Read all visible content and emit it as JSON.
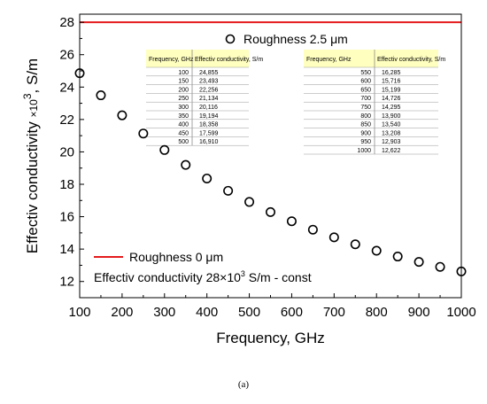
{
  "chart_data": {
    "type": "scatter",
    "xlabel": "Frequency, GHz",
    "ylabel_main": "Effectiv conductivity ",
    "ylabel_mult": "×10",
    "ylabel_exp": "3",
    "ylabel_unit": ", S/m",
    "xlim": [
      100,
      1000
    ],
    "ylim": [
      11,
      28.5
    ],
    "x_ticks": [
      100,
      200,
      300,
      400,
      500,
      600,
      700,
      800,
      900,
      1000
    ],
    "y_ticks": [
      12,
      14,
      16,
      18,
      20,
      22,
      24,
      26,
      28
    ],
    "series": [
      {
        "name": "Roughness 2.5 μm",
        "marker": "open-circle",
        "x": [
          100,
          150,
          200,
          250,
          300,
          350,
          400,
          450,
          500,
          550,
          600,
          650,
          700,
          750,
          800,
          850,
          900,
          950,
          1000
        ],
        "y": [
          24.855,
          23.493,
          22.256,
          21.134,
          20.116,
          19.194,
          18.358,
          17.599,
          16.91,
          16.285,
          15.716,
          15.199,
          14.726,
          14.295,
          13.9,
          13.54,
          13.208,
          12.903,
          12.622
        ]
      },
      {
        "name": "Roughness 0 μm",
        "marker": "line",
        "color": "#e41a1c",
        "x": [
          100,
          1000
        ],
        "y": [
          28,
          28
        ]
      }
    ],
    "annotation": "Effectiv conductivity 28×10",
    "annotation_exp": "3",
    "annotation_tail": " S/m - const",
    "tables": [
      {
        "headers": [
          "Frequency, GHz",
          "Effectiv conductivity, S/m"
        ],
        "rows": [
          [
            "100",
            "24,855"
          ],
          [
            "150",
            "23,493"
          ],
          [
            "200",
            "22,256"
          ],
          [
            "250",
            "21,134"
          ],
          [
            "300",
            "20,116"
          ],
          [
            "350",
            "19,194"
          ],
          [
            "400",
            "18,358"
          ],
          [
            "450",
            "17,599"
          ],
          [
            "500",
            "16,910"
          ]
        ]
      },
      {
        "headers": [
          "Frequency, GHz",
          "Effectiv conductivity, S/m"
        ],
        "rows": [
          [
            "550",
            "16,285"
          ],
          [
            "600",
            "15,716"
          ],
          [
            "650",
            "15,199"
          ],
          [
            "700",
            "14,726"
          ],
          [
            "750",
            "14,295"
          ],
          [
            "800",
            "13,900"
          ],
          [
            "850",
            "13,540"
          ],
          [
            "900",
            "13,208"
          ],
          [
            "950",
            "12,903"
          ],
          [
            "1000",
            "12,622"
          ]
        ]
      }
    ],
    "table_header_color": "#ffffc0"
  },
  "caption": "(a)"
}
